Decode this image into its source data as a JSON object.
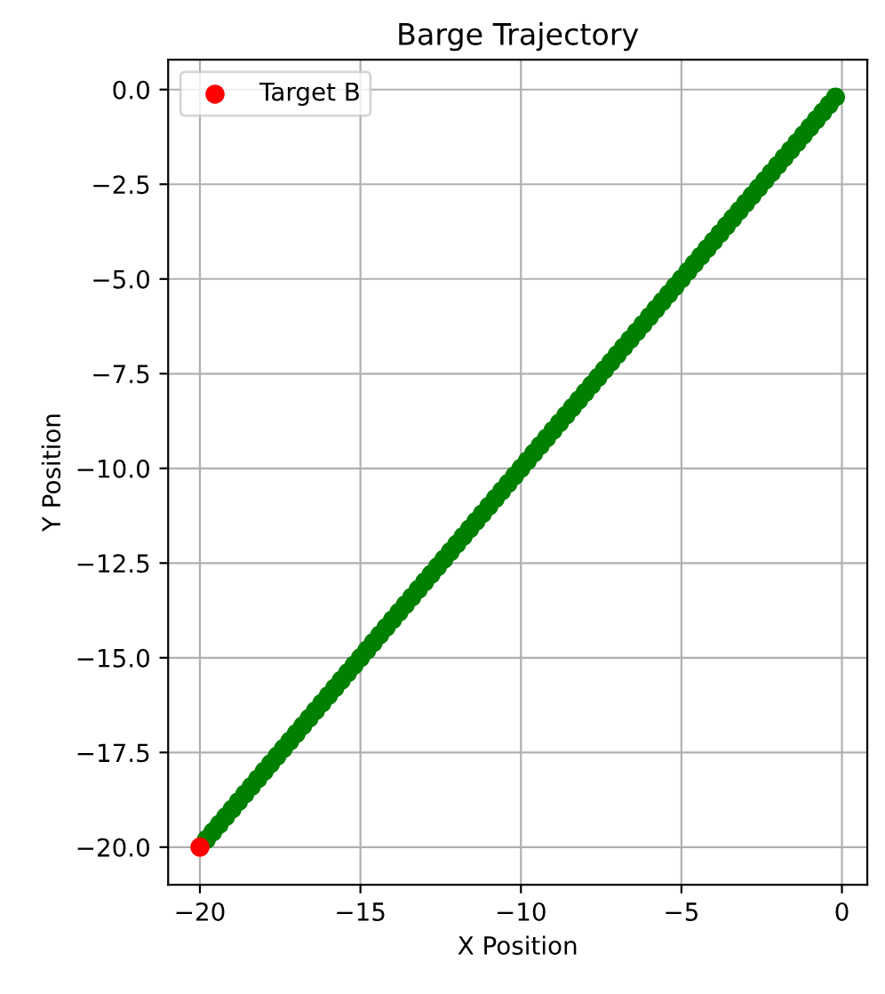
{
  "chart_data": {
    "type": "scatter",
    "title": "Barge Trajectory",
    "xlabel": "X Position",
    "ylabel": "Y Position",
    "series": [
      {
        "color": "#008000",
        "x": [
          -19.8,
          -19.6,
          -19.4,
          -19.2,
          -19.0,
          -18.8,
          -18.6,
          -18.4,
          -18.2,
          -18.0,
          -17.8,
          -17.6,
          -17.4,
          -17.2,
          -17.0,
          -16.8,
          -16.6,
          -16.4,
          -16.2,
          -16.0,
          -15.8,
          -15.6,
          -15.4,
          -15.2,
          -15.0,
          -14.8,
          -14.6,
          -14.4,
          -14.2,
          -14.0,
          -13.8,
          -13.6,
          -13.4,
          -13.2,
          -13.0,
          -12.8,
          -12.6,
          -12.4,
          -12.2,
          -12.0,
          -11.8,
          -11.6,
          -11.4,
          -11.2,
          -11.0,
          -10.8,
          -10.6,
          -10.4,
          -10.2,
          -10.0,
          -9.8,
          -9.6,
          -9.4,
          -9.2,
          -9.0,
          -8.8,
          -8.6,
          -8.4,
          -8.2,
          -8.0,
          -7.8,
          -7.6,
          -7.4,
          -7.2,
          -7.0,
          -6.8,
          -6.6,
          -6.4,
          -6.2,
          -6.0,
          -5.8,
          -5.6,
          -5.4,
          -5.2,
          -5.0,
          -4.8,
          -4.6,
          -4.4,
          -4.2,
          -4.0,
          -3.8,
          -3.6,
          -3.4,
          -3.2,
          -3.0,
          -2.8,
          -2.6,
          -2.4,
          -2.2,
          -2.0,
          -1.8,
          -1.6,
          -1.4,
          -1.2,
          -1.0,
          -0.8,
          -0.6,
          -0.4,
          -0.2
        ],
        "values": [
          -19.8,
          -19.6,
          -19.4,
          -19.2,
          -19.0,
          -18.8,
          -18.6,
          -18.4,
          -18.2,
          -18.0,
          -17.8,
          -17.6,
          -17.4,
          -17.2,
          -17.0,
          -16.8,
          -16.6,
          -16.4,
          -16.2,
          -16.0,
          -15.8,
          -15.6,
          -15.4,
          -15.2,
          -15.0,
          -14.8,
          -14.6,
          -14.4,
          -14.2,
          -14.0,
          -13.8,
          -13.6,
          -13.4,
          -13.2,
          -13.0,
          -12.8,
          -12.6,
          -12.4,
          -12.2,
          -12.0,
          -11.8,
          -11.6,
          -11.4,
          -11.2,
          -11.0,
          -10.8,
          -10.6,
          -10.4,
          -10.2,
          -10.0,
          -9.8,
          -9.6,
          -9.4,
          -9.2,
          -9.0,
          -8.8,
          -8.6,
          -8.4,
          -8.2,
          -8.0,
          -7.8,
          -7.6,
          -7.4,
          -7.2,
          -7.0,
          -6.8,
          -6.6,
          -6.4,
          -6.2,
          -6.0,
          -5.8,
          -5.6,
          -5.4,
          -5.2,
          -5.0,
          -4.8,
          -4.6,
          -4.4,
          -4.2,
          -4.0,
          -3.8,
          -3.6,
          -3.4,
          -3.2,
          -3.0,
          -2.8,
          -2.6,
          -2.4,
          -2.2,
          -2.0,
          -1.8,
          -1.6,
          -1.4,
          -1.2,
          -1.0,
          -0.8,
          -0.6,
          -0.4,
          -0.2
        ]
      },
      {
        "name": "Target B",
        "color": "#ff0000",
        "x": [
          -20
        ],
        "values": [
          -20
        ]
      }
    ],
    "xlim": [
      -20.99,
      0.79
    ],
    "ylim": [
      -20.99,
      0.79
    ],
    "xticks": [
      {
        "value": -20,
        "label": "−20"
      },
      {
        "value": -15,
        "label": "−15"
      },
      {
        "value": -10,
        "label": "−10"
      },
      {
        "value": -5,
        "label": "−5"
      },
      0
    ],
    "yticks": [
      {
        "value": 0,
        "label": "0.0"
      },
      {
        "value": -2.5,
        "label": "−2.5"
      },
      {
        "value": -5,
        "label": "−5.0"
      },
      {
        "value": -7.5,
        "label": "−7.5"
      },
      {
        "value": -10,
        "label": "−10.0"
      },
      {
        "value": -12.5,
        "label": "−12.5"
      },
      {
        "value": -15,
        "label": "−15.0"
      },
      {
        "value": -17.5,
        "label": "−17.5"
      },
      {
        "value": -20,
        "label": "−20.0"
      }
    ],
    "grid": true,
    "legend": "top left",
    "marker": "circle"
  }
}
